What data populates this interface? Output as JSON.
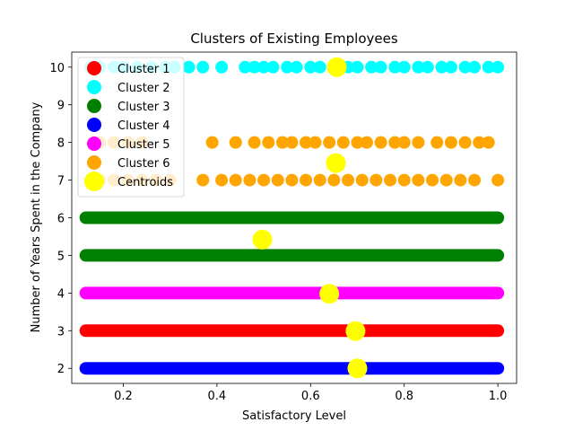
{
  "chart_data": {
    "type": "scatter",
    "title": "Clusters of Existing Employees",
    "xlabel": "Satisfactory Level",
    "ylabel": "Number of Years Spent in the Company",
    "xlim": [
      0.09,
      1.04
    ],
    "ylim": [
      1.6,
      10.4
    ],
    "xticks": [
      "0.2",
      "0.4",
      "0.6",
      "0.8",
      "1.0"
    ],
    "yticks": [
      "2",
      "3",
      "4",
      "5",
      "6",
      "7",
      "8",
      "9",
      "10"
    ],
    "grid": false,
    "legend_position": "top-left",
    "series": [
      {
        "name": "Cluster 1",
        "color": "#ff0000",
        "marker": "large-dot",
        "points": [
          {
            "y": 3,
            "x_from": 0.12,
            "x_to": 1.0
          }
        ]
      },
      {
        "name": "Cluster 2",
        "color": "#00ffff",
        "marker": "large-dot",
        "points": [
          {
            "y": 10,
            "x": 0.13
          },
          {
            "y": 10,
            "x": 0.15
          },
          {
            "y": 10,
            "x": 0.18
          },
          {
            "y": 10,
            "x": 0.2
          },
          {
            "y": 10,
            "x": 0.23
          },
          {
            "y": 10,
            "x": 0.26
          },
          {
            "y": 10,
            "x": 0.29
          },
          {
            "y": 10,
            "x": 0.31
          },
          {
            "y": 10,
            "x": 0.34
          },
          {
            "y": 10,
            "x": 0.37
          },
          {
            "y": 10,
            "x": 0.41
          },
          {
            "y": 10,
            "x": 0.46
          },
          {
            "y": 10,
            "x": 0.48
          },
          {
            "y": 10,
            "x": 0.5
          },
          {
            "y": 10,
            "x": 0.52
          },
          {
            "y": 10,
            "x": 0.55
          },
          {
            "y": 10,
            "x": 0.57
          },
          {
            "y": 10,
            "x": 0.6
          },
          {
            "y": 10,
            "x": 0.62
          },
          {
            "y": 10,
            "x": 0.65
          },
          {
            "y": 10,
            "x": 0.68
          },
          {
            "y": 10,
            "x": 0.7
          },
          {
            "y": 10,
            "x": 0.73
          },
          {
            "y": 10,
            "x": 0.75
          },
          {
            "y": 10,
            "x": 0.78
          },
          {
            "y": 10,
            "x": 0.8
          },
          {
            "y": 10,
            "x": 0.83
          },
          {
            "y": 10,
            "x": 0.85
          },
          {
            "y": 10,
            "x": 0.88
          },
          {
            "y": 10,
            "x": 0.9
          },
          {
            "y": 10,
            "x": 0.93
          },
          {
            "y": 10,
            "x": 0.95
          },
          {
            "y": 10,
            "x": 0.98
          },
          {
            "y": 10,
            "x": 1.0
          }
        ]
      },
      {
        "name": "Cluster 3",
        "color": "#008000",
        "marker": "large-dot",
        "points": [
          {
            "y": 5,
            "x_from": 0.12,
            "x_to": 1.0
          },
          {
            "y": 6,
            "x_from": 0.12,
            "x_to": 1.0
          }
        ]
      },
      {
        "name": "Cluster 4",
        "color": "#0000ff",
        "marker": "large-dot",
        "points": [
          {
            "y": 2,
            "x_from": 0.12,
            "x_to": 1.0
          }
        ]
      },
      {
        "name": "Cluster 5",
        "color": "#ff00ff",
        "marker": "large-dot",
        "points": [
          {
            "y": 4,
            "x_from": 0.12,
            "x_to": 1.0
          }
        ]
      },
      {
        "name": "Cluster 6",
        "color": "#ffa500",
        "marker": "large-dot",
        "points": [
          {
            "y": 8,
            "x": 0.15
          },
          {
            "y": 8,
            "x": 0.18
          },
          {
            "y": 8,
            "x": 0.21
          },
          {
            "y": 8,
            "x": 0.24
          },
          {
            "y": 8,
            "x": 0.39
          },
          {
            "y": 8,
            "x": 0.44
          },
          {
            "y": 8,
            "x": 0.48
          },
          {
            "y": 8,
            "x": 0.51
          },
          {
            "y": 8,
            "x": 0.54
          },
          {
            "y": 8,
            "x": 0.56
          },
          {
            "y": 8,
            "x": 0.59
          },
          {
            "y": 8,
            "x": 0.61
          },
          {
            "y": 8,
            "x": 0.64
          },
          {
            "y": 8,
            "x": 0.67
          },
          {
            "y": 8,
            "x": 0.7
          },
          {
            "y": 8,
            "x": 0.72
          },
          {
            "y": 8,
            "x": 0.75
          },
          {
            "y": 8,
            "x": 0.78
          },
          {
            "y": 8,
            "x": 0.8
          },
          {
            "y": 8,
            "x": 0.83
          },
          {
            "y": 8,
            "x": 0.87
          },
          {
            "y": 8,
            "x": 0.9
          },
          {
            "y": 8,
            "x": 0.93
          },
          {
            "y": 8,
            "x": 0.96
          },
          {
            "y": 8,
            "x": 0.98
          },
          {
            "y": 7,
            "x": 0.15
          },
          {
            "y": 7,
            "x": 0.18
          },
          {
            "y": 7,
            "x": 0.21
          },
          {
            "y": 7,
            "x": 0.24
          },
          {
            "y": 7,
            "x": 0.27
          },
          {
            "y": 7,
            "x": 0.3
          },
          {
            "y": 7,
            "x": 0.37
          },
          {
            "y": 7,
            "x": 0.41
          },
          {
            "y": 7,
            "x": 0.44
          },
          {
            "y": 7,
            "x": 0.47
          },
          {
            "y": 7,
            "x": 0.5
          },
          {
            "y": 7,
            "x": 0.53
          },
          {
            "y": 7,
            "x": 0.56
          },
          {
            "y": 7,
            "x": 0.59
          },
          {
            "y": 7,
            "x": 0.62
          },
          {
            "y": 7,
            "x": 0.65
          },
          {
            "y": 7,
            "x": 0.68
          },
          {
            "y": 7,
            "x": 0.71
          },
          {
            "y": 7,
            "x": 0.74
          },
          {
            "y": 7,
            "x": 0.77
          },
          {
            "y": 7,
            "x": 0.8
          },
          {
            "y": 7,
            "x": 0.83
          },
          {
            "y": 7,
            "x": 0.86
          },
          {
            "y": 7,
            "x": 0.89
          },
          {
            "y": 7,
            "x": 0.92
          },
          {
            "y": 7,
            "x": 0.95
          },
          {
            "y": 7,
            "x": 1.0
          }
        ]
      },
      {
        "name": "Centroids",
        "color": "#ffff00",
        "marker": "larger-dot",
        "points": [
          {
            "x": 0.656,
            "y": 10.0
          },
          {
            "x": 0.654,
            "y": 7.45
          },
          {
            "x": 0.497,
            "y": 5.42
          },
          {
            "x": 0.64,
            "y": 3.98
          },
          {
            "x": 0.696,
            "y": 2.99
          },
          {
            "x": 0.7,
            "y": 2.0
          }
        ]
      }
    ]
  }
}
